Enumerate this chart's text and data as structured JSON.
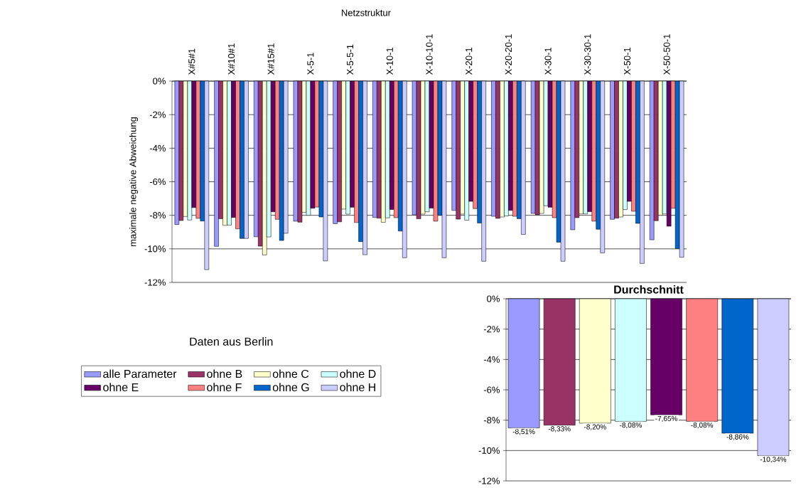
{
  "chart_data": [
    {
      "type": "bar",
      "xlabel": "Netzstruktur",
      "ylabel": "maximale negative Abweichung",
      "categories": [
        "X#5#1",
        "X#10#1",
        "X#15#1",
        "X-5-1",
        "X-5-5-1",
        "X-10-1",
        "X-10-10-1",
        "X-20-1",
        "X-20-20-1",
        "X-30-1",
        "X-30-30-1",
        "X-50-1",
        "X-50-50-1"
      ],
      "series": [
        {
          "name": "alle Parameter",
          "color": "#9999ff",
          "values": [
            -8.55,
            -9.85,
            -9.28,
            -8.35,
            -8.5,
            -8.13,
            -7.97,
            -7.71,
            -8.06,
            -7.89,
            -8.86,
            -8.24,
            -9.46
          ]
        },
        {
          "name": "ohne B",
          "color": "#993366",
          "values": [
            -8.31,
            -8.2,
            -9.84,
            -8.41,
            -8.39,
            -8.17,
            -8.21,
            -8.23,
            -8.18,
            -7.97,
            -8.14,
            -8.17,
            -8.32
          ]
        },
        {
          "name": "ohne C",
          "color": "#ffffcc",
          "values": [
            -8.07,
            -8.6,
            -10.36,
            -7.83,
            -7.63,
            -8.42,
            -7.93,
            -7.93,
            -8.1,
            -7.89,
            -7.92,
            -8.1,
            -8.0
          ]
        },
        {
          "name": "ohne D",
          "color": "#ccffff",
          "values": [
            -8.28,
            -8.59,
            -9.29,
            -8.0,
            -7.93,
            -8.15,
            -7.79,
            -8.29,
            -8.04,
            -7.43,
            -7.92,
            -7.66,
            -7.92
          ]
        },
        {
          "name": "ohne E",
          "color": "#660066",
          "values": [
            -7.54,
            -8.13,
            -7.79,
            -7.58,
            -7.52,
            -7.65,
            -7.57,
            -7.17,
            -7.71,
            -7.52,
            -7.78,
            -7.17,
            -8.65
          ]
        },
        {
          "name": "ohne F",
          "color": "#ff8080",
          "values": [
            -8.18,
            -8.81,
            -8.24,
            -7.51,
            -8.43,
            -8.14,
            -8.35,
            -7.6,
            -8.06,
            -8.14,
            -8.35,
            -7.76,
            -7.58
          ]
        },
        {
          "name": "ohne G",
          "color": "#0066cc",
          "values": [
            -8.34,
            -9.38,
            -9.5,
            -8.1,
            -9.57,
            -8.94,
            -8.0,
            -8.46,
            -8.2,
            -9.6,
            -8.83,
            -8.48,
            -9.98
          ]
        },
        {
          "name": "ohne H",
          "color": "#ccccff",
          "values": [
            -11.24,
            -9.38,
            -9.07,
            -10.72,
            -10.35,
            -10.53,
            -10.53,
            -10.74,
            -9.14,
            -10.74,
            -10.24,
            -10.87,
            -10.5
          ]
        }
      ],
      "ylim": [
        -12,
        0
      ],
      "yticks": [
        {
          "value": 0,
          "label": "0%"
        },
        {
          "value": -2,
          "label": "-2%"
        },
        {
          "value": -4,
          "label": "-4%"
        },
        {
          "value": -6,
          "label": "-6%"
        },
        {
          "value": -8,
          "label": "-8%"
        },
        {
          "value": -10,
          "label": "-10%"
        },
        {
          "value": -12,
          "label": "-12%"
        }
      ],
      "grid": "y",
      "legend": "bottom left",
      "legend_title": "Daten aus Berlin"
    },
    {
      "type": "bar",
      "title": "Durchschnitt",
      "categories": [
        null,
        null,
        null,
        null,
        null,
        null,
        null,
        null
      ],
      "values": [
        -8.51,
        -8.33,
        -8.2,
        -8.08,
        -7.65,
        -8.08,
        -8.86,
        -10.34
      ],
      "colors": [
        "#9999ff",
        "#993366",
        "#ffffcc",
        "#ccffff",
        "#660066",
        "#ff8080",
        "#0066cc",
        "#ccccff"
      ],
      "value_labels": [
        "-8,51%",
        "-8,33%",
        "-8,20%",
        "-8,08%",
        "-7,65%",
        "-8,08%",
        "-8,86%",
        "-10,34%"
      ],
      "ylim": [
        -12,
        0
      ],
      "yticks": [
        {
          "value": 0,
          "label": "0%"
        },
        {
          "value": -2,
          "label": "-2%"
        },
        {
          "value": -4,
          "label": "-4%"
        },
        {
          "value": -6,
          "label": "-6%"
        },
        {
          "value": -8,
          "label": "-8%"
        },
        {
          "value": -10,
          "label": "-10%"
        },
        {
          "value": -12,
          "label": "-12%"
        }
      ],
      "grid": "y"
    }
  ]
}
